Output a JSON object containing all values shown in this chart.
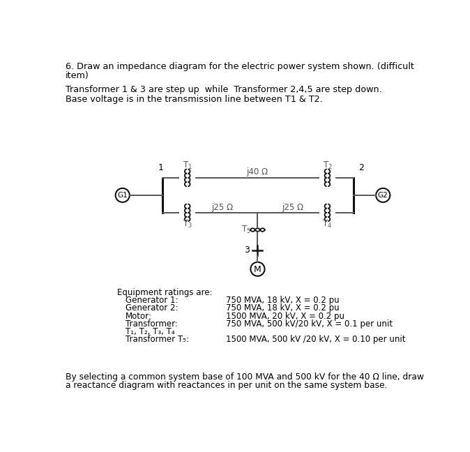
{
  "title_line1": "6. Draw an impedance diagram for the electric power system shown. (difficult",
  "title_line2": "item)",
  "desc_line1": "Transformer 1 & 3 are step up  while  Transformer 2,4,5 are step down.",
  "desc_line2": "Base voltage is in the transmission line between T1 & T2.",
  "footer_line1": "By selecting a common system base of 100 MVA and 500 kV for the 40 Ω line, draw",
  "footer_line2": "a reactance diagram with reactances in per unit on the same system base.",
  "equipment_header": "Equipment ratings are:",
  "bg_color": "#ffffff",
  "text_color": "#000000",
  "line_color": "#555555",
  "coil_color": "#111111",
  "bus_color": "#111111",
  "label_color": "#555555"
}
